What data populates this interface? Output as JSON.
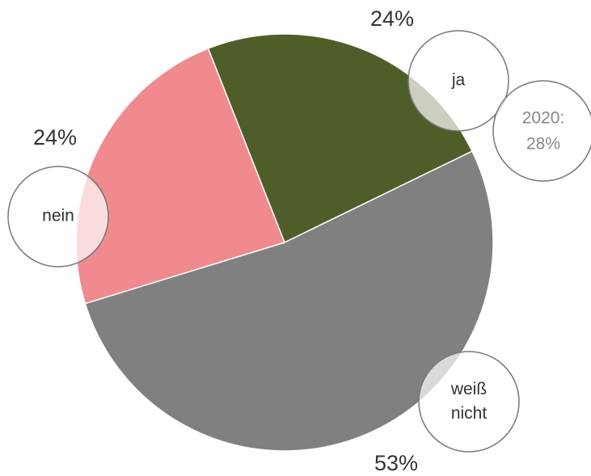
{
  "chart_data": {
    "type": "pie",
    "categories": [
      "ja",
      "weiß nicht",
      "nein"
    ],
    "values": [
      24,
      53,
      24
    ],
    "value_labels": [
      "24%",
      "53%",
      "24%"
    ],
    "colors": [
      "#4f5e28",
      "#808080",
      "#f08a8e"
    ],
    "annotation": [
      "2020:",
      "28%"
    ]
  }
}
